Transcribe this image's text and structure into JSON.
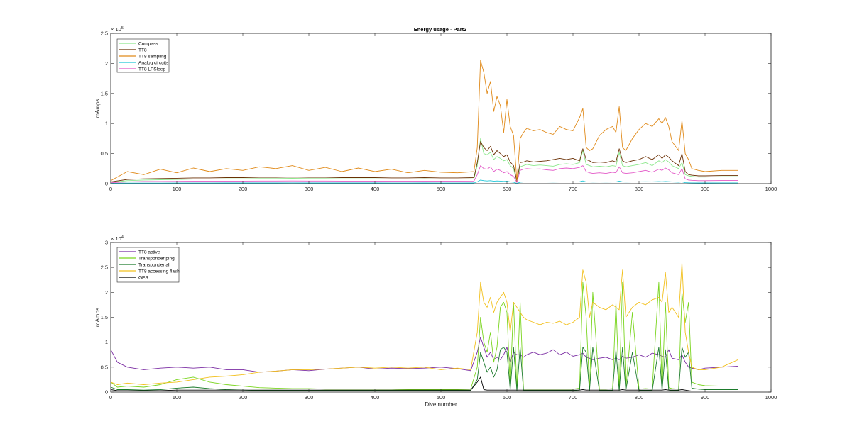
{
  "figure": {
    "title": "Energy usage - Part2"
  },
  "chart_data": [
    {
      "type": "line",
      "title": "Energy usage - Part2",
      "xlabel": "",
      "ylabel": "mAmps",
      "xlim": [
        0,
        1000
      ],
      "ylim": [
        0,
        250000
      ],
      "exponent_label": "× 10^5",
      "exponent_base": "× 10",
      "exponent_power": "5",
      "grid": true,
      "legend_position": "top-left",
      "xticks": [
        "0",
        "100",
        "200",
        "300",
        "400",
        "500",
        "600",
        "700",
        "800",
        "900",
        "1000"
      ],
      "yticks": [
        "0",
        "0.5",
        "1",
        "1.5",
        "2",
        "2.5"
      ],
      "x": [
        0,
        25,
        50,
        75,
        100,
        125,
        150,
        175,
        200,
        225,
        250,
        275,
        300,
        325,
        350,
        375,
        400,
        425,
        450,
        475,
        500,
        525,
        550,
        555,
        560,
        565,
        570,
        575,
        580,
        585,
        590,
        595,
        600,
        605,
        610,
        615,
        620,
        625,
        630,
        640,
        650,
        660,
        670,
        680,
        690,
        700,
        710,
        715,
        720,
        725,
        730,
        740,
        750,
        760,
        765,
        770,
        775,
        780,
        790,
        800,
        810,
        820,
        830,
        835,
        840,
        845,
        850,
        860,
        865,
        870,
        875,
        880,
        890,
        900,
        925,
        950
      ],
      "series": [
        {
          "name": "Compass",
          "color": "#8de88d",
          "values": [
            2000,
            5000,
            6000,
            6500,
            7000,
            7500,
            7500,
            8000,
            8000,
            8500,
            8500,
            9000,
            8500,
            8500,
            8000,
            8000,
            8000,
            7500,
            7500,
            8000,
            7500,
            7500,
            8000,
            30000,
            75000,
            50000,
            48000,
            52000,
            40000,
            45000,
            42000,
            38000,
            40000,
            30000,
            25000,
            3000,
            28000,
            30000,
            32000,
            30000,
            31000,
            30000,
            29000,
            32000,
            33000,
            32000,
            35000,
            55000,
            32000,
            30000,
            28000,
            29000,
            28000,
            30000,
            29000,
            52000,
            30000,
            28000,
            30000,
            32000,
            35000,
            30000,
            38000,
            35000,
            40000,
            36000,
            30000,
            25000,
            35000,
            15000,
            13000,
            12000,
            11000,
            11000,
            11500,
            11500
          ]
        },
        {
          "name": "TT8",
          "color": "#6b3005",
          "values": [
            3000,
            7000,
            8000,
            8500,
            9000,
            9500,
            9500,
            10000,
            10000,
            10500,
            10500,
            11000,
            10500,
            10500,
            10000,
            10000,
            10000,
            9500,
            9500,
            10000,
            9500,
            9500,
            10000,
            35000,
            70000,
            60000,
            55000,
            62000,
            48000,
            55000,
            50000,
            45000,
            48000,
            36000,
            30000,
            4000,
            35000,
            36000,
            38000,
            36000,
            37000,
            38000,
            40000,
            42000,
            40000,
            42000,
            38000,
            58000,
            40000,
            38000,
            35000,
            36000,
            35000,
            38000,
            36000,
            58000,
            38000,
            35000,
            38000,
            40000,
            45000,
            40000,
            48000,
            42000,
            48000,
            44000,
            38000,
            30000,
            50000,
            20000,
            15000,
            14000,
            13000,
            13000,
            13500,
            13500
          ]
        },
        {
          "name": "TT8 sampling",
          "color": "#e08a1a",
          "values": [
            5000,
            20000,
            15000,
            24000,
            18000,
            26000,
            20000,
            25000,
            22000,
            28000,
            25000,
            30000,
            22000,
            27000,
            20000,
            26000,
            20000,
            24000,
            18000,
            22000,
            19000,
            18000,
            20000,
            60000,
            205000,
            185000,
            150000,
            170000,
            120000,
            145000,
            130000,
            85000,
            140000,
            95000,
            80000,
            5000,
            75000,
            85000,
            92000,
            88000,
            90000,
            85000,
            82000,
            95000,
            90000,
            88000,
            110000,
            125000,
            60000,
            55000,
            58000,
            80000,
            90000,
            95000,
            85000,
            128000,
            60000,
            55000,
            75000,
            90000,
            100000,
            95000,
            108000,
            100000,
            110000,
            95000,
            70000,
            55000,
            105000,
            50000,
            40000,
            25000,
            22000,
            20000,
            22000,
            22000
          ]
        },
        {
          "name": "Analog circuits",
          "color": "#21c6d8",
          "values": [
            500,
            900,
            1000,
            1000,
            1100,
            1100,
            1100,
            1200,
            1200,
            1200,
            1200,
            1300,
            1200,
            1200,
            1200,
            1200,
            1200,
            1100,
            1100,
            1200,
            1100,
            1100,
            1200,
            3000,
            6000,
            5000,
            4500,
            5000,
            4000,
            4500,
            4200,
            3800,
            4000,
            3000,
            2500,
            500,
            2500,
            2800,
            3000,
            2800,
            2900,
            2800,
            2700,
            3000,
            3100,
            3000,
            3200,
            4500,
            3000,
            2800,
            2700,
            2800,
            2700,
            2900,
            2800,
            4200,
            2900,
            2700,
            2900,
            3000,
            3200,
            2900,
            3400,
            3200,
            3500,
            3300,
            2900,
            2500,
            3100,
            1600,
            1400,
            1300,
            1200,
            1200,
            1250,
            1250
          ]
        },
        {
          "name": "TT8 LPSleep",
          "color": "#e35ac8",
          "values": [
            1500,
            3000,
            3500,
            3500,
            3800,
            4000,
            4000,
            4200,
            4200,
            4400,
            4400,
            4500,
            4400,
            4400,
            4200,
            4200,
            4200,
            4000,
            4000,
            4200,
            4000,
            4000,
            4200,
            15000,
            30000,
            25000,
            24000,
            28000,
            20000,
            24000,
            22000,
            18000,
            20000,
            15000,
            12000,
            2000,
            22000,
            24000,
            25000,
            24000,
            24500,
            23000,
            22000,
            25000,
            26000,
            25000,
            27000,
            30000,
            20000,
            18000,
            17000,
            18000,
            17000,
            19000,
            18000,
            28000,
            18000,
            17000,
            18000,
            20000,
            22000,
            19000,
            24000,
            22000,
            26000,
            23000,
            18000,
            15000,
            25000,
            8000,
            6000,
            5500,
            5000,
            5000,
            5200,
            5200
          ]
        }
      ]
    },
    {
      "type": "line",
      "title": "",
      "xlabel": "Dive number",
      "ylabel": "mAmps",
      "xlim": [
        0,
        1000
      ],
      "ylim": [
        0,
        30000
      ],
      "exponent_label": "× 10^4",
      "exponent_base": "× 10",
      "exponent_power": "4",
      "grid": true,
      "legend_position": "top-left",
      "xticks": [
        "0",
        "100",
        "200",
        "300",
        "400",
        "500",
        "600",
        "700",
        "800",
        "900",
        "1000"
      ],
      "yticks": [
        "0",
        "0.5",
        "1",
        "1.5",
        "2",
        "2.5",
        "3"
      ],
      "x": [
        0,
        10,
        25,
        50,
        75,
        100,
        125,
        150,
        175,
        200,
        225,
        250,
        275,
        300,
        325,
        350,
        375,
        400,
        425,
        450,
        475,
        500,
        525,
        545,
        555,
        560,
        565,
        570,
        575,
        580,
        585,
        590,
        595,
        600,
        605,
        610,
        615,
        620,
        625,
        630,
        640,
        650,
        660,
        670,
        680,
        690,
        700,
        710,
        715,
        720,
        725,
        730,
        740,
        750,
        760,
        765,
        770,
        775,
        780,
        790,
        800,
        810,
        820,
        830,
        835,
        840,
        845,
        850,
        860,
        865,
        870,
        875,
        880,
        890,
        900,
        925,
        950
      ],
      "series": [
        {
          "name": "TT8 active",
          "color": "#7b2da3",
          "values": [
            8500,
            6000,
            5000,
            4500,
            4800,
            5000,
            4800,
            5000,
            4500,
            4500,
            4000,
            4200,
            4500,
            4300,
            4600,
            4800,
            5000,
            4600,
            4800,
            4700,
            4800,
            5000,
            4700,
            4300,
            8000,
            11000,
            9000,
            7000,
            8000,
            6500,
            7000,
            6500,
            7500,
            9000,
            6000,
            8000,
            7500,
            7500,
            7000,
            7500,
            8000,
            7500,
            7800,
            8500,
            7500,
            8000,
            7200,
            7500,
            7800,
            7000,
            6800,
            6500,
            6800,
            7000,
            6500,
            6800,
            6500,
            7200,
            6800,
            7000,
            7500,
            7000,
            7800,
            7500,
            7200,
            7000,
            8500,
            6800,
            6500,
            7500,
            6000,
            5000,
            4800,
            4500,
            4800,
            5000,
            5200
          ]
        },
        {
          "name": "Transponder ping",
          "color": "#7ad51f",
          "values": [
            2000,
            1000,
            1200,
            1000,
            1500,
            2500,
            3000,
            2000,
            1500,
            1200,
            900,
            800,
            700,
            700,
            600,
            600,
            600,
            600,
            600,
            500,
            500,
            500,
            500,
            600,
            5000,
            15000,
            10000,
            8000,
            12000,
            6000,
            9000,
            17000,
            18000,
            16000,
            1000,
            18000,
            500,
            18000,
            600,
            600,
            600,
            600,
            600,
            600,
            600,
            600,
            600,
            800,
            22000,
            15000,
            600,
            20000,
            600,
            600,
            700,
            18000,
            600,
            22000,
            600,
            16000,
            600,
            700,
            600,
            22000,
            600,
            18000,
            900,
            700,
            600,
            20000,
            14000,
            18000,
            2000,
            1500,
            1300,
            1200,
            1200
          ]
        },
        {
          "name": "Transponder all",
          "color": "#1b7a2b",
          "values": [
            1000,
            500,
            500,
            400,
            500,
            800,
            1000,
            700,
            500,
            400,
            300,
            300,
            300,
            300,
            300,
            300,
            300,
            300,
            300,
            300,
            300,
            300,
            300,
            300,
            2500,
            8000,
            6000,
            4000,
            5000,
            3000,
            4500,
            8500,
            9000,
            8000,
            500,
            9000,
            300,
            9000,
            300,
            300,
            300,
            300,
            300,
            300,
            300,
            300,
            300,
            400,
            9000,
            8000,
            300,
            9000,
            300,
            300,
            300,
            8500,
            300,
            9000,
            300,
            8000,
            300,
            300,
            300,
            9000,
            300,
            8500,
            400,
            300,
            300,
            9000,
            7000,
            8000,
            800,
            600,
            500,
            500,
            500
          ]
        },
        {
          "name": "TT8 accessing flash",
          "color": "#f2c01d",
          "values": [
            2000,
            1500,
            1800,
            1500,
            1800,
            2000,
            2500,
            3000,
            3200,
            3500,
            4000,
            4200,
            4500,
            4500,
            4600,
            4800,
            5000,
            4800,
            5000,
            4800,
            5000,
            4500,
            4800,
            4500,
            12000,
            22000,
            18000,
            17000,
            19000,
            16000,
            18000,
            19000,
            20000,
            18000,
            12000,
            18000,
            17000,
            16000,
            15000,
            14500,
            14000,
            13500,
            14000,
            13800,
            14200,
            13500,
            14000,
            15000,
            24500,
            22000,
            15000,
            18000,
            17000,
            16500,
            17500,
            17000,
            16500,
            24500,
            15000,
            17000,
            18000,
            17500,
            18500,
            19000,
            18000,
            24000,
            16000,
            17000,
            15000,
            26000,
            12000,
            8000,
            5000,
            4500,
            4500,
            5000,
            6500
          ]
        },
        {
          "name": "GPS",
          "color": "#000000",
          "values": [
            500,
            300,
            300,
            300,
            300,
            400,
            400,
            400,
            400,
            400,
            400,
            400,
            400,
            400,
            400,
            400,
            400,
            400,
            400,
            400,
            400,
            400,
            400,
            400,
            2000,
            3000,
            500,
            400,
            400,
            400,
            400,
            400,
            400,
            400,
            400,
            400,
            400,
            400,
            400,
            400,
            400,
            400,
            400,
            400,
            400,
            400,
            400,
            400,
            500,
            400,
            400,
            400,
            400,
            400,
            400,
            400,
            400,
            500,
            400,
            400,
            400,
            400,
            400,
            400,
            400,
            500,
            400,
            400,
            400,
            500,
            400,
            300,
            200,
            200,
            200,
            200,
            200
          ]
        }
      ]
    }
  ]
}
